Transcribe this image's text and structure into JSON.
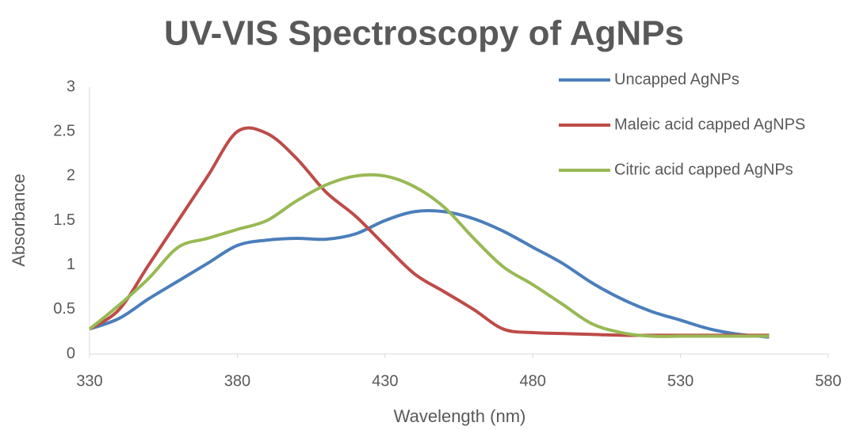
{
  "chart_data": {
    "type": "line",
    "title": "UV-VIS Spectroscopy of AgNPs",
    "x_label": "Wavelength (nm)",
    "y_label": "Absorbance",
    "x": [
      330,
      340,
      350,
      360,
      370,
      380,
      390,
      400,
      410,
      420,
      430,
      440,
      450,
      460,
      470,
      480,
      490,
      500,
      510,
      520,
      530,
      540,
      550,
      560
    ],
    "series": [
      {
        "name": "Uncapped AgNPs",
        "color": "#4a7ebb",
        "values": [
          0.28,
          0.4,
          0.62,
          0.82,
          1.02,
          1.22,
          1.28,
          1.3,
          1.29,
          1.35,
          1.5,
          1.6,
          1.6,
          1.52,
          1.38,
          1.2,
          1.02,
          0.8,
          0.62,
          0.48,
          0.38,
          0.28,
          0.22,
          0.19
        ]
      },
      {
        "name": "Maleic acid capped AgNPS",
        "color": "#be4b48",
        "values": [
          0.28,
          0.5,
          1.0,
          1.5,
          2.0,
          2.5,
          2.48,
          2.2,
          1.82,
          1.55,
          1.22,
          0.9,
          0.7,
          0.5,
          0.28,
          0.24,
          0.23,
          0.22,
          0.21,
          0.21,
          0.21,
          0.21,
          0.21,
          0.21
        ]
      },
      {
        "name": "Citric acid capped AgNPs",
        "color": "#98b954",
        "values": [
          0.28,
          0.55,
          0.85,
          1.2,
          1.3,
          1.4,
          1.5,
          1.72,
          1.9,
          2.0,
          2.0,
          1.88,
          1.65,
          1.3,
          0.98,
          0.78,
          0.56,
          0.34,
          0.24,
          0.2,
          0.2,
          0.2,
          0.2,
          0.2
        ]
      }
    ],
    "xlim": [
      330,
      580
    ],
    "xticks": [
      330,
      380,
      430,
      480,
      530,
      580
    ],
    "ylim": [
      0,
      3
    ],
    "yticks": [
      0,
      0.5,
      1,
      1.5,
      2,
      2.5,
      3
    ],
    "legend": "right"
  }
}
